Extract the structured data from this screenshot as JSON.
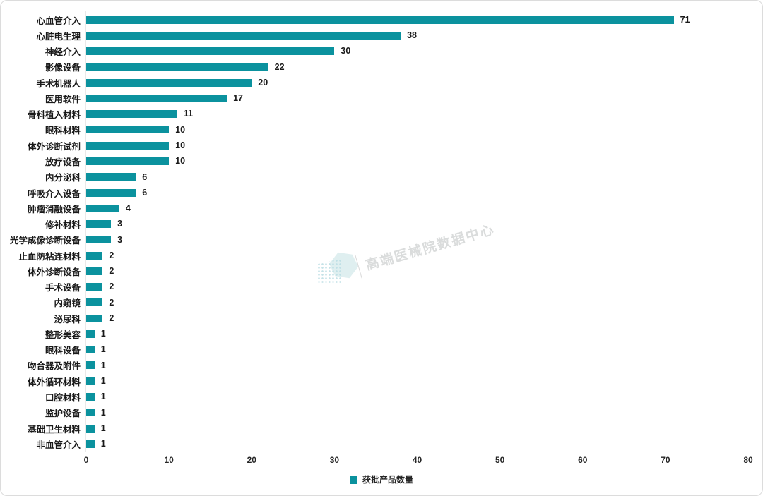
{
  "chart_data": {
    "type": "bar",
    "orientation": "horizontal",
    "title": "",
    "categories": [
      "心血管介入",
      "心脏电生理",
      "神经介入",
      "影像设备",
      "手术机器人",
      "医用软件",
      "骨科植入材料",
      "眼科材料",
      "体外诊断试剂",
      "放疗设备",
      "内分泌科",
      "呼吸介入设备",
      "肿瘤消融设备",
      "修补材料",
      "光学成像诊断设备",
      "止血防粘连材料",
      "体外诊断设备",
      "手术设备",
      "内窥镜",
      "泌尿科",
      "整形美容",
      "眼科设备",
      "吻合器及附件",
      "体外循环材料",
      "口腔材料",
      "监护设备",
      "基础卫生材料",
      "非血管介入"
    ],
    "values": [
      71,
      38,
      30,
      22,
      20,
      17,
      11,
      10,
      10,
      10,
      6,
      6,
      4,
      3,
      3,
      2,
      2,
      2,
      2,
      2,
      1,
      1,
      1,
      1,
      1,
      1,
      1,
      1
    ],
    "series_name": "获批产品数量",
    "xlabel": "",
    "ylabel": "",
    "xlim": [
      0,
      80
    ],
    "x_ticks": [
      0,
      10,
      20,
      30,
      40,
      50,
      60,
      70,
      80
    ],
    "grid": false,
    "value_labels": true,
    "legend_position": "bottom",
    "bar_color": "#0B929E"
  },
  "legend": {
    "swatch_color": "#0B929E",
    "label": "获批产品数量"
  },
  "watermark": {
    "text": "高端医械院数据中心"
  },
  "colors": {
    "bar": "#0B929E",
    "axis_line": "#E9E9E9",
    "text": "#1A1A1A",
    "card_border": "#DCDCDC",
    "watermark_text": "#DADCDC"
  }
}
